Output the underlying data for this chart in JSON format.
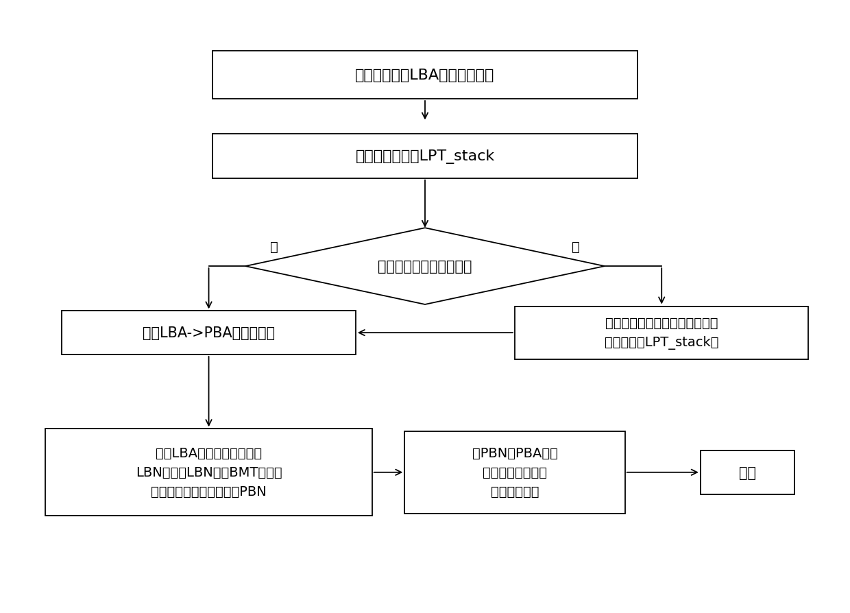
{
  "bg_color": "#ffffff",
  "box1_text": "操作系统给出LBA，发出读请求",
  "box2_text": "查看缓存映射表LPT_stack",
  "diamond_text": "判断是否有相应映射表项",
  "box3_text": "获得LBA->PBA的映射表项",
  "box4_text": "从磁盘读取映射表项，并将新的\n表项装入表LPT_stack中",
  "box5_text": "计算LBA对应的数据条带号\nLBN，根据LBN查找BMT表，获\n得对应数据的物理条带号PBN",
  "box6_text": "由PBN和PBA获得\n数据的实际物理块\n号，读取数据",
  "box7_text": "结束",
  "yes_label": "是",
  "no_label": "否"
}
